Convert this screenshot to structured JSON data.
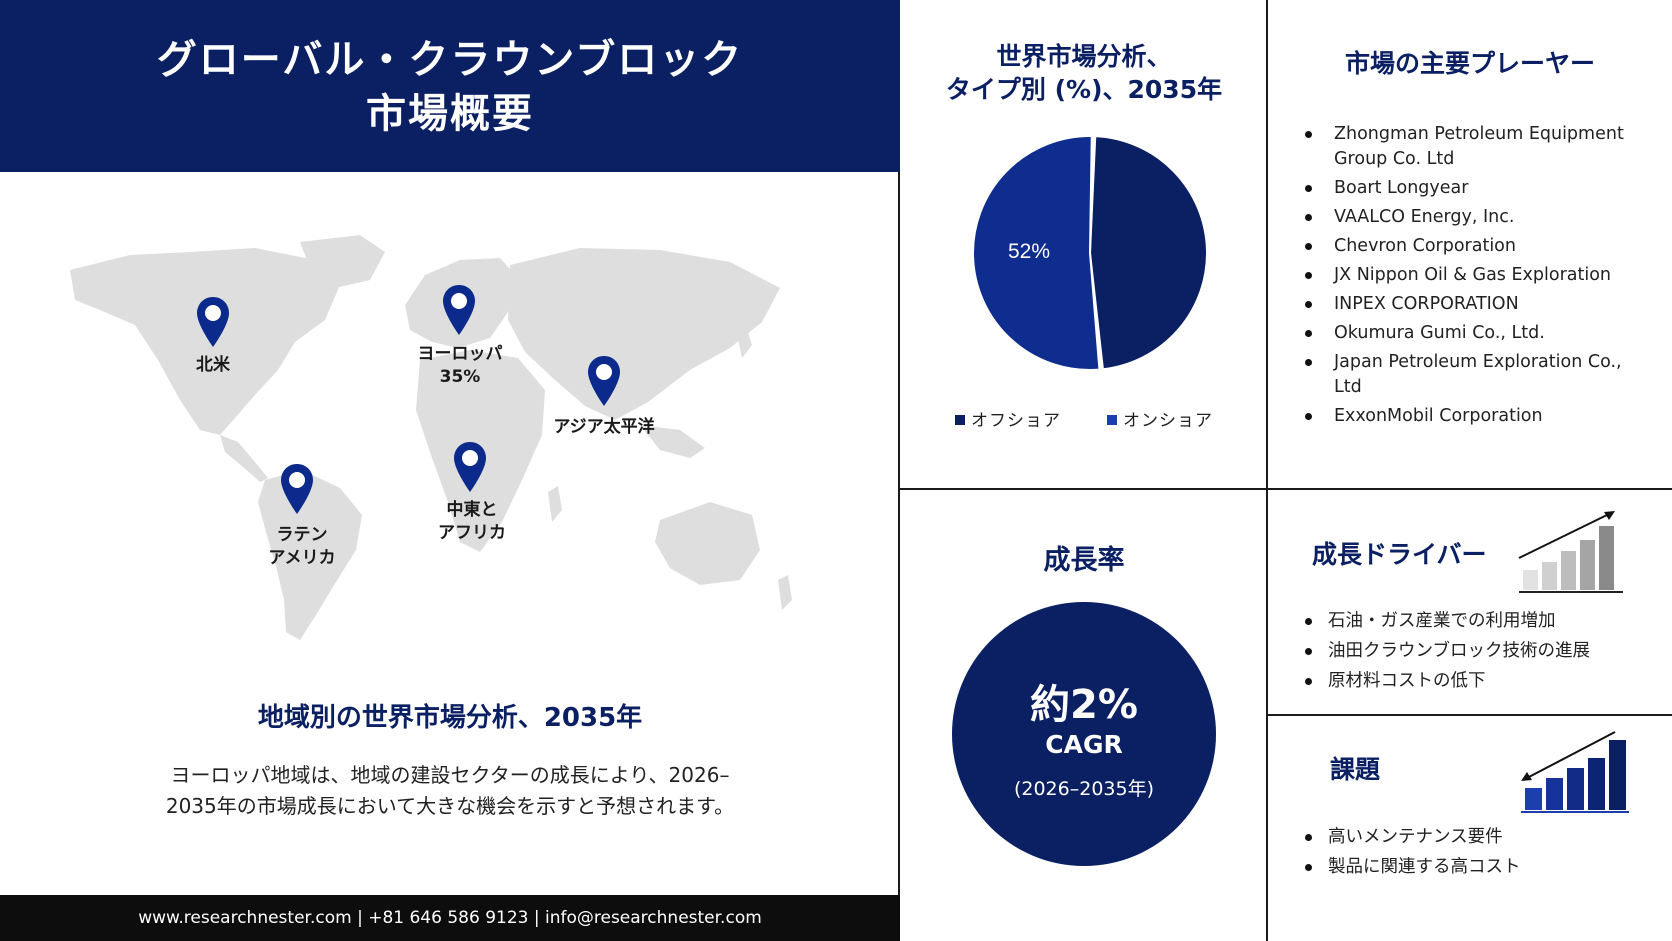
{
  "header": {
    "title_line1": "グローバル・クラウンブロック",
    "title_line2": "市場概要"
  },
  "map": {
    "regions": [
      {
        "id": "north-america",
        "label": "北米",
        "value": ""
      },
      {
        "id": "europe",
        "label": "ヨーロッパ",
        "value": "35%"
      },
      {
        "id": "asia-pacific",
        "label": "アジア太平洋",
        "value": ""
      },
      {
        "id": "latin-america",
        "label_line1": "ラテン",
        "label_line2": "アメリカ"
      },
      {
        "id": "mea",
        "label_line1": "中東と",
        "label_line2": "アフリカ"
      }
    ],
    "pin_color": "#0b2a8c"
  },
  "region_section": {
    "heading": "地域別の世界市場分析、2035年",
    "description": "ヨーロッパ地域は、地域の建設セクターの成長により、2026–2035年の市場成長において大きな機会を示すと予想されます。"
  },
  "footer": {
    "contact": "www.researchnester.com | +81 646 586 9123 | info@researchnester.com"
  },
  "chart_data": {
    "type": "pie",
    "title_line1": "世界市場分析、",
    "title_line2": "タイプ別 (%)、2035年",
    "slices": [
      {
        "name": "オフショア",
        "value": 48,
        "color": "#0b1f63",
        "label": ""
      },
      {
        "name": "オンショア",
        "value": 52,
        "color": "#0e2d8e",
        "label": "52%"
      }
    ],
    "legend_position": "bottom"
  },
  "players": {
    "title": "市場の主要プレーヤー",
    "items": [
      "Zhongman Petroleum Equipment Group Co. Ltd",
      "Boart Longyear",
      "VAALCO Energy, Inc.",
      "Chevron Corporation",
      "JX Nippon Oil & Gas Exploration",
      "INPEX CORPORATION",
      "Okumura Gumi Co., Ltd.",
      "Japan Petroleum Exploration Co., Ltd",
      "ExxonMobil Corporation"
    ]
  },
  "growth": {
    "title": "成長率",
    "value": "約2%",
    "label": "CAGR",
    "period": "(2026–2035年)"
  },
  "drivers": {
    "title": "成長ドライバー",
    "items": [
      "石油・ガス産業での利用増加",
      "油田クラウンブロック技術の進展",
      "原材料コストの低下"
    ]
  },
  "challenges": {
    "title": "課題",
    "items": [
      "高いメンテナンス要件",
      "製品に関連する高コスト"
    ]
  },
  "colors": {
    "navy": "#0b1f63",
    "accent_blue": "#1d3fae"
  }
}
